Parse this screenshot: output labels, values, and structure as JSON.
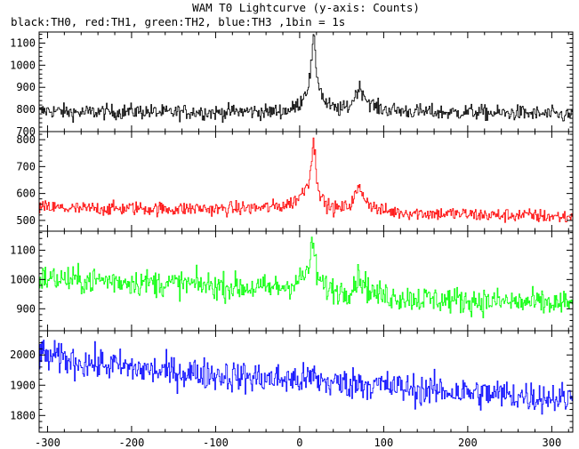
{
  "title": "WAM T0 Lightcurve (y-axis: Counts)",
  "subtitle": "black:TH0, red:TH1, green:TH2, blue:TH3 ,1bin = 1s",
  "chart_data": {
    "type": "line",
    "title": "WAM T0 Lightcurve (y-axis: Counts)",
    "subtitle": "black:TH0, red:TH1, green:TH2, blue:TH3 ,1bin = 1s",
    "ylabel": "Counts",
    "xlim": [
      -310,
      325
    ],
    "x_ticks": [
      -300,
      -200,
      -100,
      0,
      100,
      200,
      300
    ],
    "grid": false,
    "legend": "none",
    "panels": [
      {
        "name": "TH0",
        "color": "#000000",
        "ylim": [
          700,
          1150
        ],
        "y_ticks": [
          700,
          800,
          900,
          1000,
          1100
        ],
        "x": [
          -310,
          -300,
          -280,
          -260,
          -240,
          -220,
          -200,
          -180,
          -160,
          -140,
          -120,
          -100,
          -80,
          -60,
          -40,
          -20,
          -10,
          0,
          5,
          10,
          13,
          16,
          18,
          20,
          25,
          30,
          40,
          50,
          60,
          65,
          70,
          75,
          80,
          90,
          100,
          120,
          140,
          160,
          180,
          200,
          220,
          240,
          260,
          280,
          300,
          320
        ],
        "values": [
          790,
          795,
          790,
          785,
          790,
          788,
          792,
          790,
          785,
          788,
          790,
          785,
          790,
          792,
          788,
          795,
          800,
          830,
          870,
          910,
          990,
          1120,
          1060,
          960,
          880,
          830,
          805,
          800,
          820,
          860,
          900,
          880,
          840,
          810,
          800,
          795,
          790,
          788,
          785,
          790,
          785,
          782,
          785,
          780,
          778,
          772
        ],
        "noise": 32
      },
      {
        "name": "TH1",
        "color": "#ff0000",
        "ylim": [
          460,
          830
        ],
        "y_ticks": [
          500,
          600,
          700,
          800
        ],
        "x": [
          -310,
          -300,
          -280,
          -260,
          -240,
          -220,
          -200,
          -180,
          -160,
          -140,
          -120,
          -100,
          -80,
          -60,
          -40,
          -20,
          -10,
          0,
          5,
          10,
          13,
          16,
          18,
          20,
          25,
          30,
          40,
          50,
          60,
          65,
          70,
          75,
          80,
          90,
          100,
          120,
          140,
          160,
          180,
          200,
          220,
          240,
          260,
          280,
          300,
          320
        ],
        "values": [
          545,
          548,
          545,
          542,
          545,
          543,
          546,
          544,
          542,
          543,
          545,
          541,
          544,
          546,
          548,
          555,
          565,
          590,
          615,
          645,
          710,
          790,
          740,
          660,
          590,
          560,
          545,
          545,
          560,
          590,
          620,
          600,
          570,
          545,
          535,
          530,
          528,
          525,
          525,
          522,
          520,
          518,
          520,
          517,
          515,
          512
        ],
        "noise": 24
      },
      {
        "name": "TH2",
        "color": "#00ff00",
        "ylim": [
          825,
          1165
        ],
        "y_ticks": [
          900,
          1000,
          1100
        ],
        "x": [
          -310,
          -300,
          -280,
          -260,
          -240,
          -220,
          -200,
          -180,
          -160,
          -140,
          -120,
          -100,
          -80,
          -60,
          -40,
          -20,
          -10,
          0,
          5,
          10,
          13,
          16,
          18,
          20,
          25,
          30,
          40,
          50,
          60,
          65,
          70,
          75,
          80,
          90,
          100,
          120,
          140,
          160,
          180,
          200,
          220,
          240,
          260,
          280,
          300,
          320
        ],
        "values": [
          1000,
          1005,
          1000,
          995,
          998,
          995,
          992,
          990,
          985,
          985,
          982,
          978,
          975,
          972,
          970,
          975,
          985,
          1000,
          1010,
          1040,
          1090,
          1120,
          1070,
          1020,
          985,
          975,
          965,
          960,
          965,
          990,
          1010,
          995,
          970,
          950,
          945,
          940,
          935,
          932,
          930,
          928,
          925,
          925,
          922,
          920,
          918,
          915
        ],
        "noise": 42
      },
      {
        "name": "TH3",
        "color": "#0000ff",
        "ylim": [
          1745,
          2080
        ],
        "y_ticks": [
          1800,
          1900,
          2000
        ],
        "x": [
          -310,
          -300,
          -280,
          -260,
          -240,
          -220,
          -200,
          -180,
          -160,
          -140,
          -120,
          -100,
          -80,
          -60,
          -40,
          -20,
          -10,
          0,
          5,
          10,
          13,
          16,
          18,
          20,
          25,
          30,
          40,
          50,
          60,
          65,
          70,
          75,
          80,
          90,
          100,
          120,
          140,
          160,
          180,
          200,
          220,
          240,
          260,
          280,
          300,
          320
        ],
        "values": [
          2000,
          1995,
          1985,
          1975,
          1970,
          1965,
          1955,
          1950,
          1945,
          1942,
          1940,
          1935,
          1930,
          1925,
          1922,
          1920,
          1918,
          1918,
          1918,
          1920,
          1925,
          1932,
          1925,
          1918,
          1915,
          1910,
          1908,
          1905,
          1905,
          1908,
          1910,
          1908,
          1903,
          1900,
          1898,
          1892,
          1885,
          1882,
          1880,
          1875,
          1872,
          1870,
          1865,
          1862,
          1860,
          1855
        ],
        "noise": 48
      }
    ]
  }
}
